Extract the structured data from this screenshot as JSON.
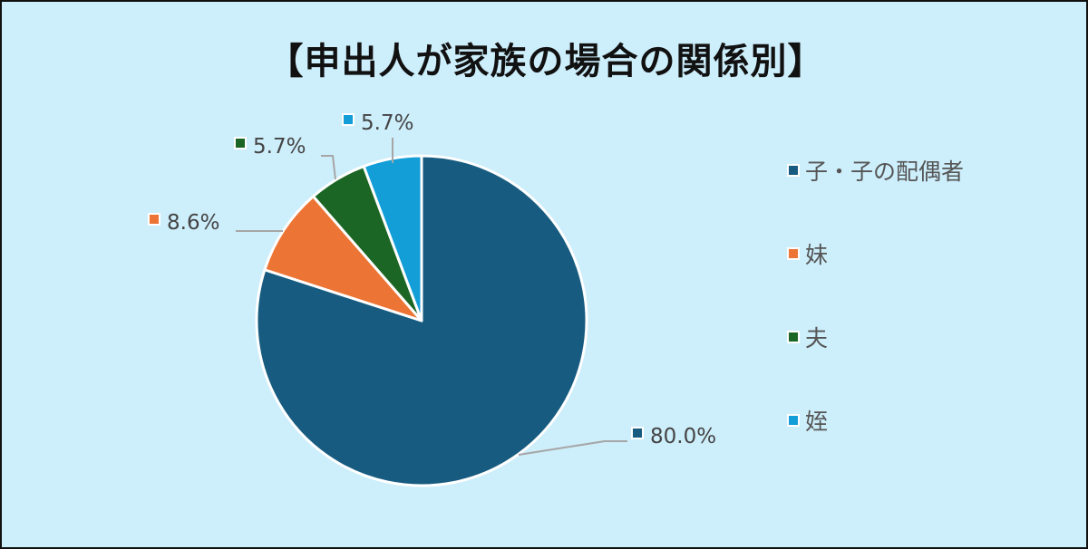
{
  "chart_data": {
    "type": "pie",
    "title": "【申出人が家族の場合の関係別】",
    "start_angle_deg": 0,
    "direction": "clockwise",
    "slices": [
      {
        "label": "子・子の配偶者",
        "value": 80.0,
        "data_label": "80.0%",
        "color": "#175c80"
      },
      {
        "label": "妹",
        "value": 8.6,
        "data_label": "8.6%",
        "color": "#ec7434"
      },
      {
        "label": "夫",
        "value": 5.7,
        "data_label": "5.7%",
        "color": "#1c6625"
      },
      {
        "label": "姪",
        "value": 5.7,
        "data_label": "5.7%",
        "color": "#139ed7"
      }
    ],
    "legend_position": "right",
    "data_label_color": "#444444",
    "leader_line_color": "#a6a6a6"
  }
}
